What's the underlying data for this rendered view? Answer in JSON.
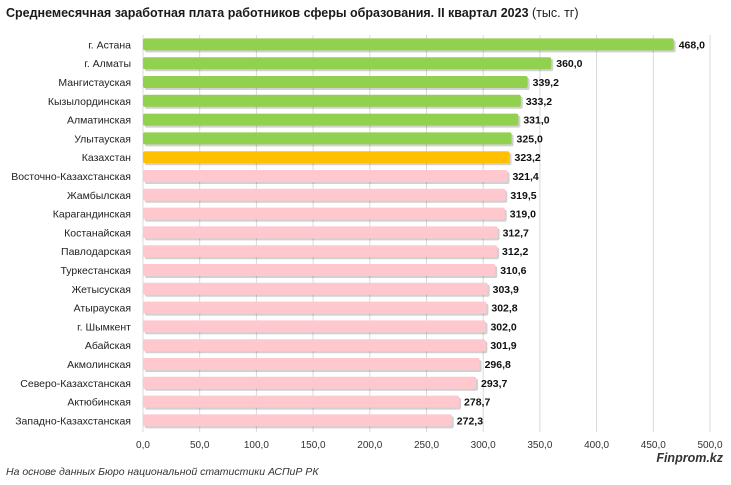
{
  "chart_data": {
    "type": "bar",
    "orientation": "horizontal",
    "title": "Среднемесячная заработная плата работников сферы образования. II квартал 2023",
    "title_unit": "(тыс. тг)",
    "categories": [
      "г. Астана",
      "г. Алматы",
      "Мангистауская",
      "Кызылординская",
      "Алматинская",
      "Улытауская",
      "Казахстан",
      "Восточно-Казахстанская",
      "Жамбылская",
      "Карагандинская",
      "Костанайская",
      "Павлодарская",
      "Туркестанская",
      "Жетысуская",
      "Атырауская",
      "г. Шымкент",
      "Абайская",
      "Акмолинская",
      "Северо-Казахстанская",
      "Актюбинская",
      "Западно-Казахстанская"
    ],
    "values": [
      468.0,
      360.0,
      339.2,
      333.2,
      331.0,
      325.0,
      323.2,
      321.4,
      319.5,
      319.0,
      312.7,
      312.2,
      310.6,
      303.9,
      302.8,
      302.0,
      301.9,
      296.8,
      293.7,
      278.7,
      272.3
    ],
    "value_labels": [
      "468,0",
      "360,0",
      "339,2",
      "333,2",
      "331,0",
      "325,0",
      "323,2",
      "321,4",
      "319,5",
      "319,0",
      "312,7",
      "312,2",
      "310,6",
      "303,9",
      "302,8",
      "302,0",
      "301,9",
      "296,8",
      "293,7",
      "278,7",
      "272,3"
    ],
    "bar_groups": [
      "high",
      "high",
      "high",
      "high",
      "high",
      "high",
      "national",
      "low",
      "low",
      "low",
      "low",
      "low",
      "low",
      "low",
      "low",
      "low",
      "low",
      "low",
      "low",
      "low",
      "low"
    ],
    "colors": {
      "high": "#92d050",
      "national": "#ffc000",
      "low": "#ffc7ce",
      "grid": "#d9d9d9"
    },
    "xlim": [
      0,
      500
    ],
    "xticks": [
      0,
      50,
      100,
      150,
      200,
      250,
      300,
      350,
      400,
      450,
      500
    ],
    "xtick_labels": [
      "0,0",
      "50,0",
      "100,0",
      "150,0",
      "200,0",
      "250,0",
      "300,0",
      "350,0",
      "400,0",
      "450,0",
      "500,0"
    ],
    "grid": true
  },
  "footer": {
    "source": "На основе данных Бюро национальной статистики АСПиР РК",
    "brand": "Finprom.kz"
  }
}
